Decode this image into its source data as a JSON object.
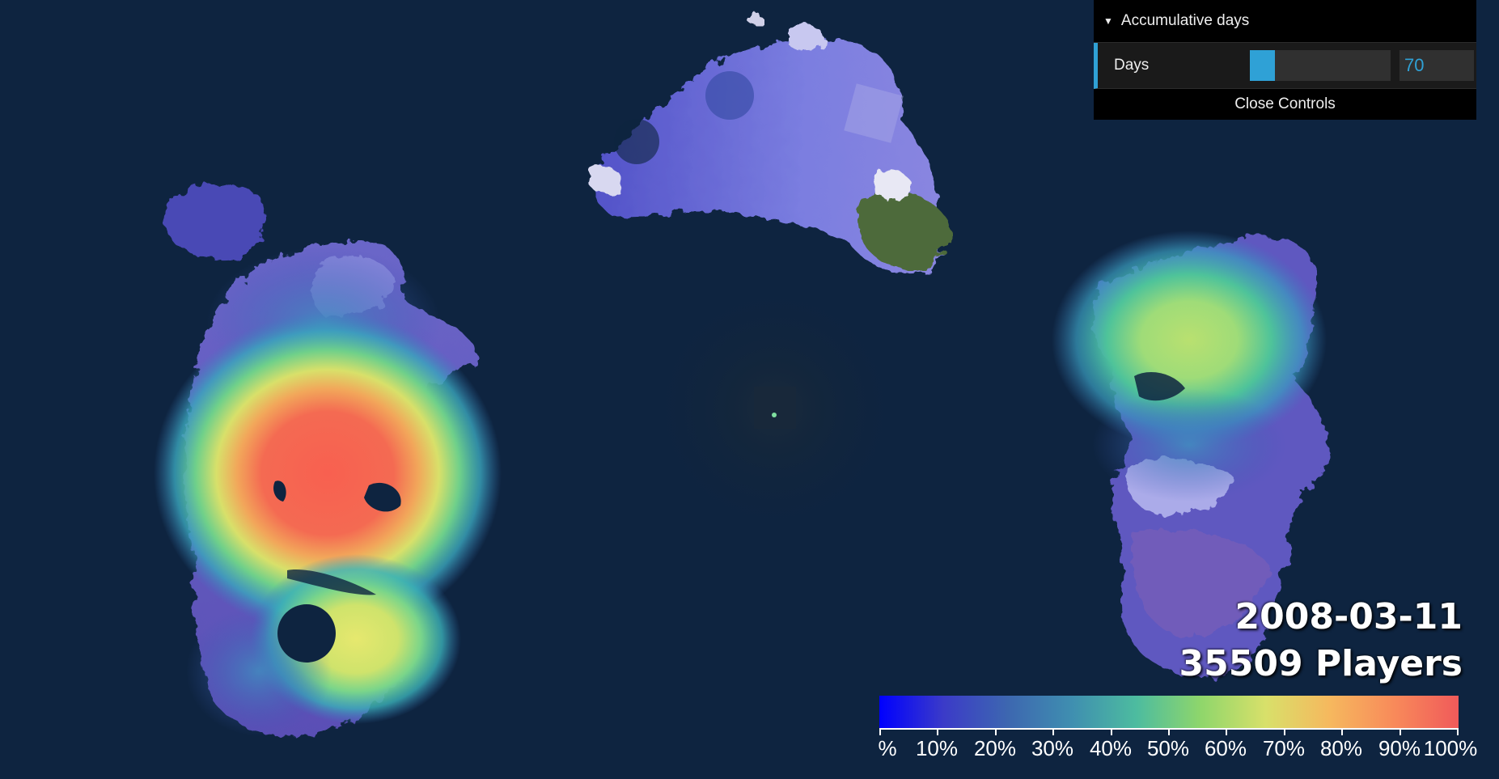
{
  "controls": {
    "folder_title": "Accumulative days",
    "days_label": "Days",
    "days_value": "70",
    "days_fraction": 0.18,
    "close_label": "Close Controls",
    "caret_icon": "triangle-down-icon",
    "accent_color": "#2fa1d6"
  },
  "overlay": {
    "date": "2008-03-11",
    "players": "35509 Players"
  },
  "legend": {
    "min_label": "%",
    "tick_labels": [
      "%",
      "10%",
      "20%",
      "30%",
      "40%",
      "50%",
      "60%",
      "70%",
      "80%",
      "90%",
      "100%"
    ],
    "gradient_colors": [
      "#0000ff",
      "#3b3bc8",
      "#3d67b0",
      "#3f8fb0",
      "#4dbc9f",
      "#8fd66b",
      "#d8e06a",
      "#f6b85e",
      "#f88a5a",
      "#f05a5a"
    ]
  },
  "map": {
    "background_color": "#0e2440",
    "continents": [
      "western-continent",
      "northern-continent",
      "eastern-continent",
      "central-maelstrom",
      "northwest-island"
    ]
  }
}
